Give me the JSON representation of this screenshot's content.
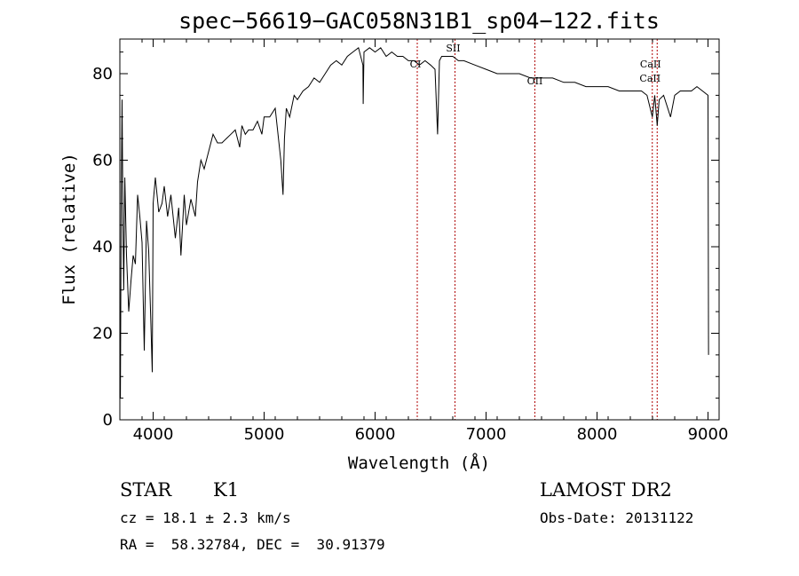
{
  "chart_data": {
    "type": "line",
    "title": "spec−56619−GAC058N31B1_sp04−122.fits",
    "xlabel": "Wavelength (Å)",
    "ylabel": "Flux (relative)",
    "xlim": [
      3700,
      9100
    ],
    "ylim": [
      0,
      88
    ],
    "xticks": [
      4000,
      5000,
      6000,
      7000,
      8000,
      9000
    ],
    "yticks": [
      0,
      20,
      40,
      60,
      80
    ],
    "grid": false,
    "series": [
      {
        "x": [
          3705,
          3712,
          3720,
          3728,
          3735,
          3745,
          3760,
          3780,
          3800,
          3820,
          3840,
          3860,
          3880,
          3900,
          3920,
          3940,
          3960,
          3980,
          3992,
          4000,
          4020,
          4050,
          4080,
          4100,
          4130,
          4160,
          4200,
          4230,
          4250,
          4280,
          4300,
          4340,
          4380,
          4400,
          4430,
          4460,
          4500,
          4540,
          4580,
          4620,
          4660,
          4700,
          4740,
          4780,
          4800,
          4830,
          4860,
          4900,
          4940,
          4980,
          5000,
          5050,
          5100,
          5150,
          5170,
          5183,
          5200,
          5230,
          5270,
          5300,
          5350,
          5400,
          5450,
          5500,
          5550,
          5600,
          5650,
          5700,
          5750,
          5800,
          5850,
          5890,
          5893,
          5900,
          5950,
          6000,
          6050,
          6100,
          6150,
          6200,
          6250,
          6300,
          6350,
          6400,
          6450,
          6500,
          6540,
          6563,
          6580,
          6600,
          6650,
          6700,
          6750,
          6800,
          6900,
          7000,
          7100,
          7200,
          7300,
          7400,
          7500,
          7600,
          7700,
          7800,
          7900,
          8000,
          8100,
          8200,
          8300,
          8400,
          8450,
          8498,
          8520,
          8542,
          8560,
          8600,
          8662,
          8700,
          8750,
          8800,
          8850,
          8900,
          8950,
          9000,
          9005
        ],
        "y": [
          5,
          50,
          74,
          45,
          30,
          56,
          38,
          25,
          32,
          38,
          36,
          52,
          47,
          41,
          16,
          46,
          39,
          22,
          11,
          50,
          56,
          48,
          50,
          54,
          47,
          52,
          42,
          49,
          38,
          52,
          45,
          51,
          47,
          55,
          60,
          58,
          62,
          66,
          64,
          64,
          65,
          66,
          67,
          63,
          68,
          66,
          67,
          67,
          69,
          66,
          70,
          70,
          72,
          60,
          52,
          65,
          72,
          70,
          75,
          74,
          76,
          77,
          79,
          78,
          80,
          82,
          83,
          82,
          84,
          85,
          86,
          82,
          73,
          85,
          86,
          85,
          86,
          84,
          85,
          84,
          84,
          83,
          83,
          82,
          83,
          82,
          81,
          66,
          83,
          84,
          84,
          84,
          83,
          83,
          82,
          81,
          80,
          80,
          80,
          79,
          79,
          79,
          78,
          78,
          77,
          77,
          77,
          76,
          76,
          76,
          75,
          70,
          75,
          68,
          74,
          75,
          70,
          75,
          76,
          76,
          76,
          77,
          76,
          75,
          15
        ]
      }
    ],
    "line_markers": [
      {
        "label": "CI",
        "x": 6380
      },
      {
        "label": "SII",
        "x": 6720
      },
      {
        "label": "OII",
        "x": 7440
      },
      {
        "label": "CaII",
        "x": 8498
      },
      {
        "label": "CaII",
        "x": 8542
      }
    ]
  },
  "info": {
    "object_type": "STAR",
    "subclass": "K1",
    "survey": "LAMOST DR2",
    "redshift_text": "cz = 18.1 ± 2.3 km/s",
    "obs_date_text": "Obs-Date: 20131122",
    "coords_text": "RA =  58.32784, DEC =  30.91379"
  },
  "colors": {
    "spectrum": "#000000",
    "marker_line": "#b00000"
  }
}
